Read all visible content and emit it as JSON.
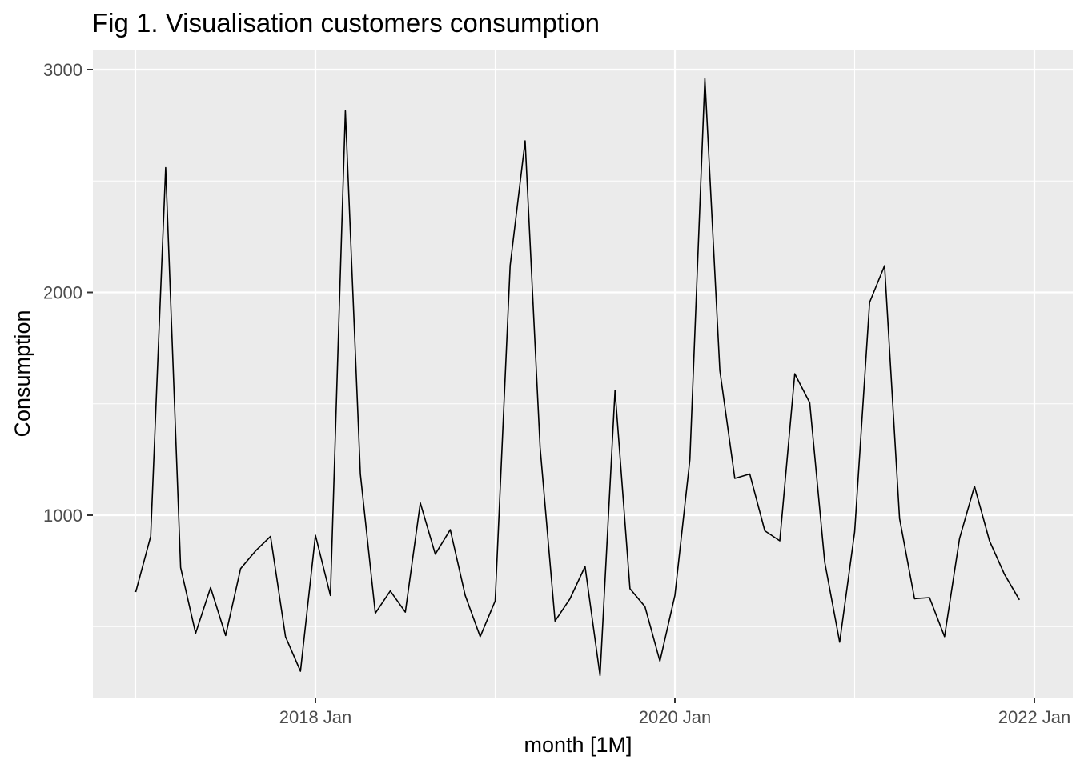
{
  "chart_data": {
    "type": "line",
    "title": "Fig 1. Visualisation customers consumption",
    "xlabel": "month [1M]",
    "ylabel": "Consumption",
    "xlim": [
      "2017-01",
      "2021-12"
    ],
    "ylim": [
      0,
      3000
    ],
    "x_ticks": [
      {
        "label": "2018 Jan",
        "value": "2018-01"
      },
      {
        "label": "2020 Jan",
        "value": "2020-01"
      },
      {
        "label": "2022 Jan",
        "value": "2022-01"
      }
    ],
    "y_ticks": [
      1000,
      2000,
      3000
    ],
    "grid": true,
    "legend": "none",
    "x": [
      "2017-01",
      "2017-02",
      "2017-03",
      "2017-04",
      "2017-05",
      "2017-06",
      "2017-07",
      "2017-08",
      "2017-09",
      "2017-10",
      "2017-11",
      "2017-12",
      "2018-01",
      "2018-02",
      "2018-03",
      "2018-04",
      "2018-05",
      "2018-06",
      "2018-07",
      "2018-08",
      "2018-09",
      "2018-10",
      "2018-11",
      "2018-12",
      "2019-01",
      "2019-02",
      "2019-03",
      "2019-04",
      "2019-05",
      "2019-06",
      "2019-07",
      "2019-08",
      "2019-09",
      "2019-10",
      "2019-11",
      "2019-12",
      "2020-01",
      "2020-02",
      "2020-03",
      "2020-04",
      "2020-05",
      "2020-06",
      "2020-07",
      "2020-08",
      "2020-09",
      "2020-10",
      "2020-11",
      "2020-12",
      "2021-01",
      "2021-02",
      "2021-03",
      "2021-04",
      "2021-05",
      "2021-06",
      "2021-07",
      "2021-08",
      "2021-09",
      "2021-10",
      "2021-11",
      "2021-12"
    ],
    "series": [
      {
        "color": "#000000",
        "values": [
          655,
          905,
          2560,
          765,
          470,
          675,
          460,
          760,
          840,
          905,
          455,
          300,
          910,
          640,
          2815,
          1185,
          560,
          660,
          565,
          1055,
          825,
          935,
          640,
          455,
          615,
          2120,
          2680,
          1305,
          525,
          625,
          770,
          280,
          1560,
          670,
          590,
          345,
          640,
          1250,
          2960,
          1650,
          1165,
          1185,
          930,
          885,
          1635,
          1505,
          790,
          430,
          925,
          1955,
          2120,
          985,
          625,
          630,
          455,
          895,
          1130,
          885,
          735,
          620
        ]
      }
    ]
  }
}
